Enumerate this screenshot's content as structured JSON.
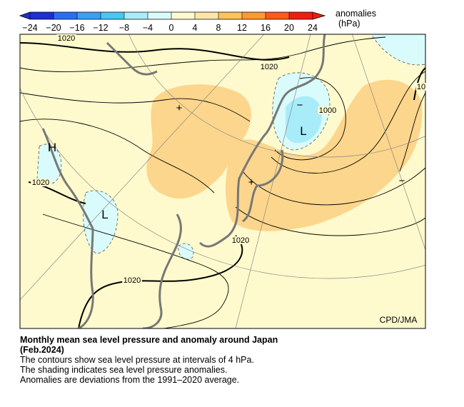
{
  "colorbar": {
    "ticks": [
      {
        "value": -24,
        "label": "−24"
      },
      {
        "value": -20,
        "label": "−20"
      },
      {
        "value": -16,
        "label": "−16"
      },
      {
        "value": -12,
        "label": "−12"
      },
      {
        "value": -8,
        "label": "−8"
      },
      {
        "value": -4,
        "label": "−4"
      },
      0,
      4,
      8,
      12,
      16,
      20,
      24
    ],
    "colors": [
      "#1e2fd0",
      "#2a6ef0",
      "#3aa0f2",
      "#48c6f4",
      "#a8ecfa",
      "#d9fbfb",
      "#fffacd",
      "#ffe6a8",
      "#ffc35a",
      "#ff9a30",
      "#ff5a1a",
      "#f01e10"
    ],
    "unit_label": "anomalies",
    "unit": "(hPa)"
  },
  "map": {
    "contour_labels": [
      "1020",
      "1020",
      "1020",
      "1020",
      "1020",
      "1000",
      "10"
    ],
    "centers": [
      "H",
      "L",
      "L"
    ],
    "anomaly_signs": [
      "+",
      "+",
      "−",
      "−"
    ],
    "credit": "CPD/JMA"
  },
  "caption": {
    "title": "Monthly mean sea level pressure and anomaly around Japan",
    "period": "(Feb.2024)",
    "lines": [
      "The contours show sea level pressure at intervals of 4 hPa.",
      "The shading indicates sea level pressure anomalies.",
      "Anomalies are deviations from the 1991–2020 average."
    ]
  }
}
